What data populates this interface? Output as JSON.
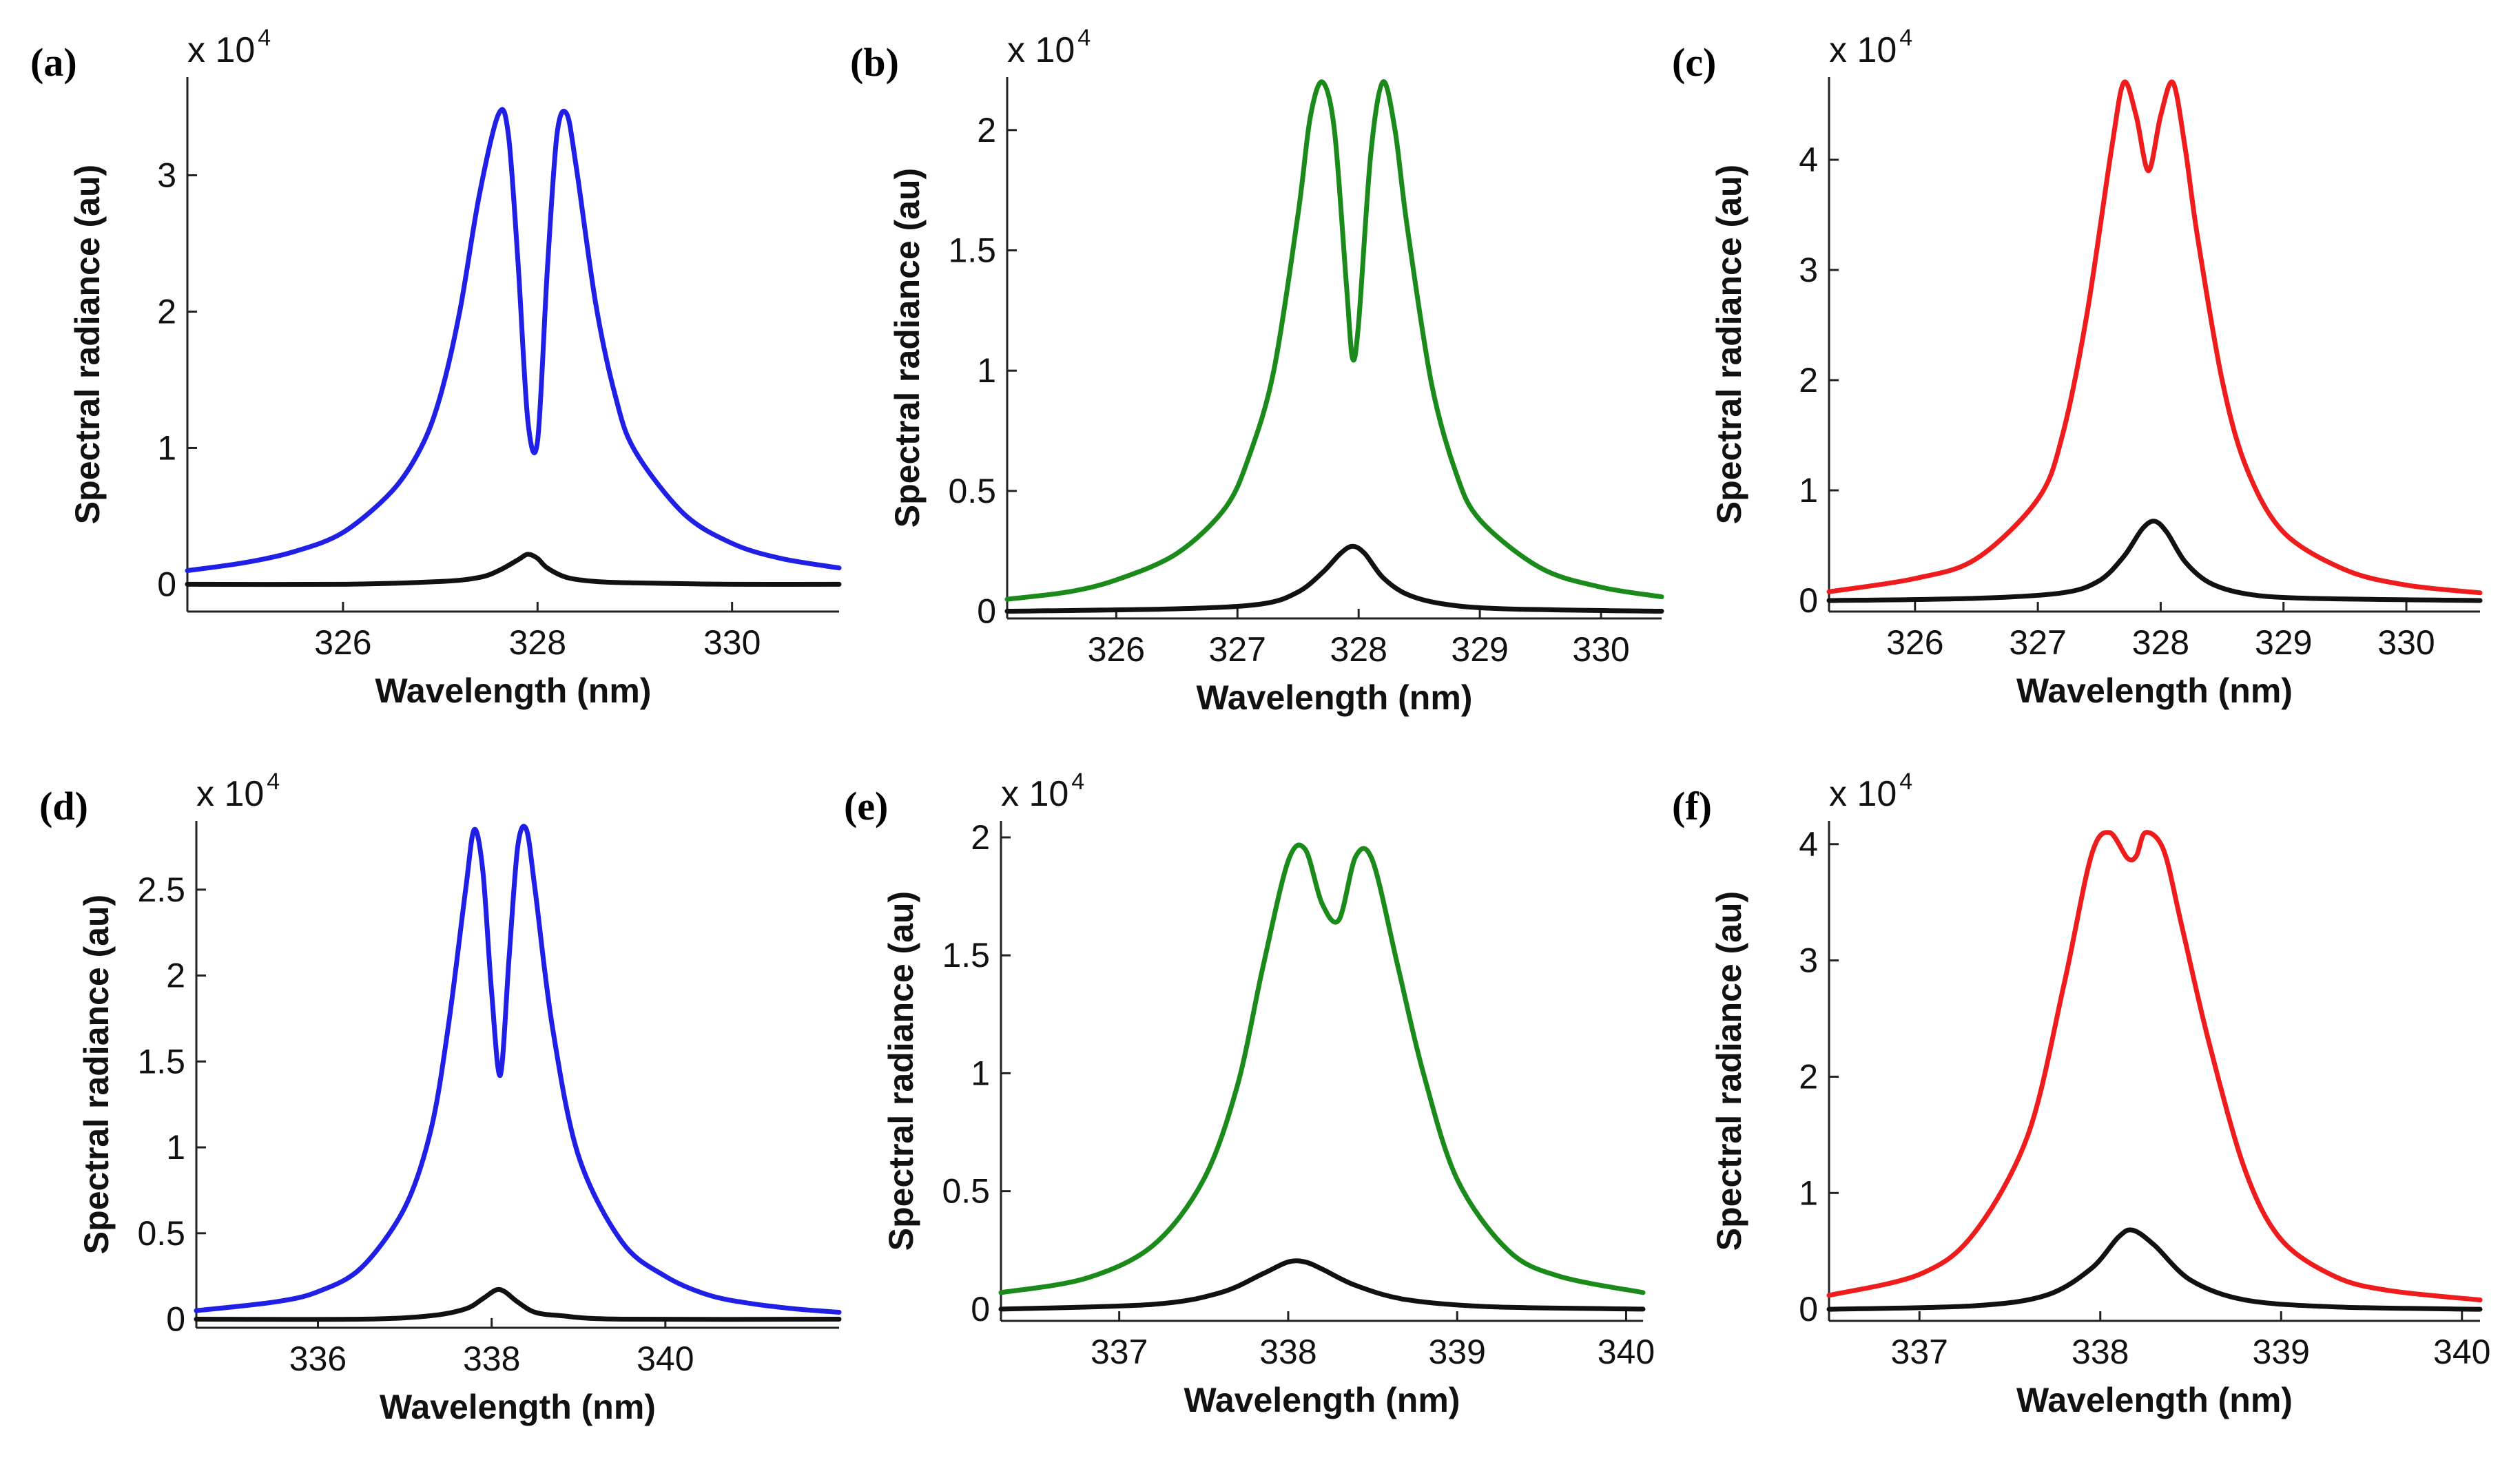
{
  "figure": {
    "colors": {
      "blue": "#1f1fe6",
      "green": "#1a8a1a",
      "red": "#ee1c1c",
      "black": "#111111"
    }
  },
  "chart_data": [
    {
      "id": "a",
      "type": "line",
      "panel_label": "(a)",
      "xlabel": "Wavelength (nm)",
      "ylabel": "Spectral radiance (au)",
      "exponent": "x 10",
      "exponent_power": "4",
      "xlim": [
        324.4,
        331.1
      ],
      "ylim": [
        -0.2,
        3.72
      ],
      "xticks": [
        326,
        328,
        330
      ],
      "xtick_labels": [
        "326",
        "328",
        "330"
      ],
      "yticks": [
        0,
        1,
        2,
        3
      ],
      "ytick_labels": [
        "0",
        "1",
        "2",
        "3"
      ],
      "series": [
        {
          "name": "colored",
          "color": "#1f1fe6",
          "x": [
            324.4,
            325.0,
            325.5,
            326.0,
            326.5,
            326.8,
            327.0,
            327.2,
            327.4,
            327.6,
            327.7,
            327.8,
            327.9,
            328.0,
            328.1,
            328.2,
            328.3,
            328.4,
            328.6,
            328.8,
            329.0,
            329.5,
            330.0,
            330.5,
            331.1
          ],
          "y": [
            0.1,
            0.16,
            0.24,
            0.38,
            0.68,
            1.0,
            1.38,
            2.0,
            2.85,
            3.45,
            3.3,
            2.35,
            1.2,
            1.05,
            2.3,
            3.3,
            3.45,
            3.05,
            2.05,
            1.38,
            0.98,
            0.52,
            0.3,
            0.19,
            0.12
          ]
        },
        {
          "name": "black",
          "color": "#111111",
          "x": [
            324.4,
            326.0,
            327.0,
            327.4,
            327.6,
            327.8,
            327.9,
            328.0,
            328.1,
            328.3,
            328.6,
            329.0,
            330.0,
            331.1
          ],
          "y": [
            0.0,
            0.0,
            0.02,
            0.05,
            0.1,
            0.18,
            0.22,
            0.19,
            0.12,
            0.05,
            0.02,
            0.01,
            0.0,
            0.0
          ]
        }
      ]
    },
    {
      "id": "b",
      "type": "line",
      "panel_label": "(b)",
      "xlabel": "Wavelength (nm)",
      "ylabel": "Spectral radiance (au)",
      "exponent": "x 10",
      "exponent_power": "4",
      "xlim": [
        325.1,
        330.5
      ],
      "ylim": [
        -0.03,
        2.22
      ],
      "xticks": [
        326,
        327,
        328,
        329,
        330
      ],
      "xtick_labels": [
        "326",
        "327",
        "328",
        "329",
        "330"
      ],
      "yticks": [
        0,
        0.5,
        1,
        1.5,
        2
      ],
      "ytick_labels": [
        "0",
        "0.5",
        "1",
        "1.5",
        "2"
      ],
      "series": [
        {
          "name": "colored",
          "color": "#1a8a1a",
          "x": [
            325.1,
            325.6,
            326.0,
            326.5,
            326.9,
            327.1,
            327.3,
            327.5,
            327.6,
            327.7,
            327.8,
            327.9,
            327.95,
            328.0,
            328.1,
            328.2,
            328.3,
            328.4,
            328.6,
            328.8,
            329.0,
            329.5,
            330.0,
            330.5
          ],
          "y": [
            0.05,
            0.08,
            0.13,
            0.24,
            0.43,
            0.65,
            1.0,
            1.65,
            2.05,
            2.2,
            2.0,
            1.35,
            1.05,
            1.2,
            1.9,
            2.2,
            2.0,
            1.6,
            0.95,
            0.58,
            0.38,
            0.18,
            0.1,
            0.06
          ]
        },
        {
          "name": "black",
          "color": "#111111",
          "x": [
            325.1,
            326.5,
            327.2,
            327.5,
            327.7,
            327.85,
            327.95,
            328.05,
            328.2,
            328.4,
            328.7,
            329.2,
            330.5
          ],
          "y": [
            0.0,
            0.01,
            0.03,
            0.08,
            0.16,
            0.24,
            0.27,
            0.24,
            0.14,
            0.07,
            0.03,
            0.01,
            0.0
          ]
        }
      ]
    },
    {
      "id": "c",
      "type": "line",
      "panel_label": "(c)",
      "xlabel": "Wavelength (nm)",
      "ylabel": "Spectral radiance (au)",
      "exponent": "x 10",
      "exponent_power": "4",
      "xlim": [
        325.3,
        330.6
      ],
      "ylim": [
        -0.1,
        4.75
      ],
      "xticks": [
        326,
        327,
        328,
        329,
        330
      ],
      "xtick_labels": [
        "326",
        "327",
        "328",
        "329",
        "330"
      ],
      "yticks": [
        0,
        1,
        2,
        3,
        4
      ],
      "ytick_labels": [
        "0",
        "1",
        "2",
        "3",
        "4"
      ],
      "series": [
        {
          "name": "colored",
          "color": "#ee1c1c",
          "x": [
            325.3,
            326.0,
            326.5,
            327.0,
            327.2,
            327.4,
            327.6,
            327.7,
            327.8,
            327.9,
            328.0,
            328.1,
            328.2,
            328.3,
            328.5,
            328.7,
            329.0,
            329.5,
            330.0,
            330.6
          ],
          "y": [
            0.08,
            0.2,
            0.38,
            0.92,
            1.5,
            2.6,
            4.1,
            4.7,
            4.4,
            3.9,
            4.4,
            4.7,
            4.1,
            3.3,
            2.0,
            1.2,
            0.62,
            0.28,
            0.14,
            0.07
          ]
        },
        {
          "name": "black",
          "color": "#111111",
          "x": [
            325.3,
            326.5,
            327.2,
            327.5,
            327.7,
            327.85,
            327.95,
            328.05,
            328.2,
            328.4,
            328.7,
            329.2,
            330.6
          ],
          "y": [
            0.0,
            0.02,
            0.07,
            0.18,
            0.4,
            0.65,
            0.72,
            0.62,
            0.35,
            0.16,
            0.06,
            0.02,
            0.0
          ]
        }
      ]
    },
    {
      "id": "d",
      "type": "line",
      "panel_label": "(d)",
      "xlabel": "Wavelength (nm)",
      "ylabel": "Spectral radiance (au)",
      "exponent": "x 10",
      "exponent_power": "4",
      "xlim": [
        334.6,
        342.0
      ],
      "ylim": [
        -0.05,
        2.9
      ],
      "xticks": [
        336,
        338,
        340
      ],
      "xtick_labels": [
        "336",
        "338",
        "340"
      ],
      "yticks": [
        0,
        0.5,
        1,
        1.5,
        2,
        2.5
      ],
      "ytick_labels": [
        "0",
        "0.5",
        "1",
        "1.5",
        "2",
        "2.5"
      ],
      "series": [
        {
          "name": "colored",
          "color": "#1f1fe6",
          "x": [
            334.6,
            335.5,
            336.0,
            336.5,
            337.0,
            337.3,
            337.5,
            337.7,
            337.8,
            337.9,
            338.0,
            338.1,
            338.2,
            338.3,
            338.4,
            338.5,
            338.7,
            339.0,
            339.5,
            340.0,
            340.5,
            341.0,
            341.5,
            342.0
          ],
          "y": [
            0.05,
            0.1,
            0.16,
            0.3,
            0.65,
            1.1,
            1.7,
            2.5,
            2.85,
            2.6,
            1.9,
            1.42,
            2.1,
            2.75,
            2.85,
            2.5,
            1.7,
            0.95,
            0.45,
            0.25,
            0.14,
            0.09,
            0.06,
            0.04
          ]
        },
        {
          "name": "black",
          "color": "#111111",
          "x": [
            334.6,
            336.5,
            337.3,
            337.7,
            337.9,
            338.05,
            338.15,
            338.3,
            338.5,
            338.8,
            339.5,
            342.0
          ],
          "y": [
            0.0,
            0.0,
            0.02,
            0.06,
            0.12,
            0.17,
            0.16,
            0.1,
            0.04,
            0.02,
            0.0,
            0.0
          ]
        }
      ]
    },
    {
      "id": "e",
      "type": "line",
      "panel_label": "(e)",
      "xlabel": "Wavelength (nm)",
      "ylabel": "Spectral radiance (au)",
      "exponent": "x 10",
      "exponent_power": "4",
      "xlim": [
        336.3,
        340.1
      ],
      "ylim": [
        -0.05,
        2.07
      ],
      "xticks": [
        337,
        338,
        339,
        340
      ],
      "xtick_labels": [
        "337",
        "338",
        "339",
        "340"
      ],
      "yticks": [
        0,
        0.5,
        1,
        1.5,
        2
      ],
      "ytick_labels": [
        "0",
        "0.5",
        "1",
        "1.5",
        "2"
      ],
      "series": [
        {
          "name": "colored",
          "color": "#1a8a1a",
          "x": [
            336.3,
            336.8,
            337.2,
            337.5,
            337.7,
            337.85,
            338.0,
            338.1,
            338.2,
            338.3,
            338.4,
            338.5,
            338.65,
            338.8,
            339.0,
            339.3,
            339.6,
            340.1
          ],
          "y": [
            0.07,
            0.13,
            0.27,
            0.55,
            0.95,
            1.45,
            1.9,
            1.95,
            1.72,
            1.65,
            1.92,
            1.9,
            1.45,
            1.0,
            0.55,
            0.25,
            0.14,
            0.07
          ]
        },
        {
          "name": "black",
          "color": "#111111",
          "x": [
            336.3,
            337.2,
            337.6,
            337.85,
            338.0,
            338.1,
            338.2,
            338.4,
            338.7,
            339.2,
            340.1
          ],
          "y": [
            0.0,
            0.02,
            0.07,
            0.15,
            0.2,
            0.2,
            0.17,
            0.1,
            0.04,
            0.01,
            0.0
          ]
        }
      ]
    },
    {
      "id": "f",
      "type": "line",
      "panel_label": "(f)",
      "xlabel": "Wavelength (nm)",
      "ylabel": "Spectral radiance (au)",
      "exponent": "x 10",
      "exponent_power": "4",
      "xlim": [
        336.5,
        340.1
      ],
      "ylim": [
        -0.1,
        4.2
      ],
      "xticks": [
        337,
        338,
        339,
        340
      ],
      "xtick_labels": [
        "337",
        "338",
        "339",
        "340"
      ],
      "yticks": [
        0,
        1,
        2,
        3,
        4
      ],
      "ytick_labels": [
        "0",
        "1",
        "2",
        "3",
        "4"
      ],
      "series": [
        {
          "name": "colored",
          "color": "#ee1c1c",
          "x": [
            336.5,
            337.0,
            337.3,
            337.6,
            337.8,
            337.95,
            338.05,
            338.15,
            338.2,
            338.25,
            338.35,
            338.45,
            338.6,
            338.8,
            339.0,
            339.3,
            339.6,
            340.1
          ],
          "y": [
            0.12,
            0.3,
            0.65,
            1.5,
            2.8,
            3.9,
            4.1,
            3.88,
            3.9,
            4.1,
            3.95,
            3.3,
            2.3,
            1.2,
            0.6,
            0.28,
            0.16,
            0.08
          ]
        },
        {
          "name": "black",
          "color": "#111111",
          "x": [
            336.5,
            337.3,
            337.7,
            337.95,
            338.1,
            338.18,
            338.3,
            338.5,
            338.8,
            339.3,
            340.1
          ],
          "y": [
            0.0,
            0.03,
            0.12,
            0.35,
            0.62,
            0.68,
            0.55,
            0.25,
            0.08,
            0.02,
            0.0
          ]
        }
      ]
    }
  ]
}
